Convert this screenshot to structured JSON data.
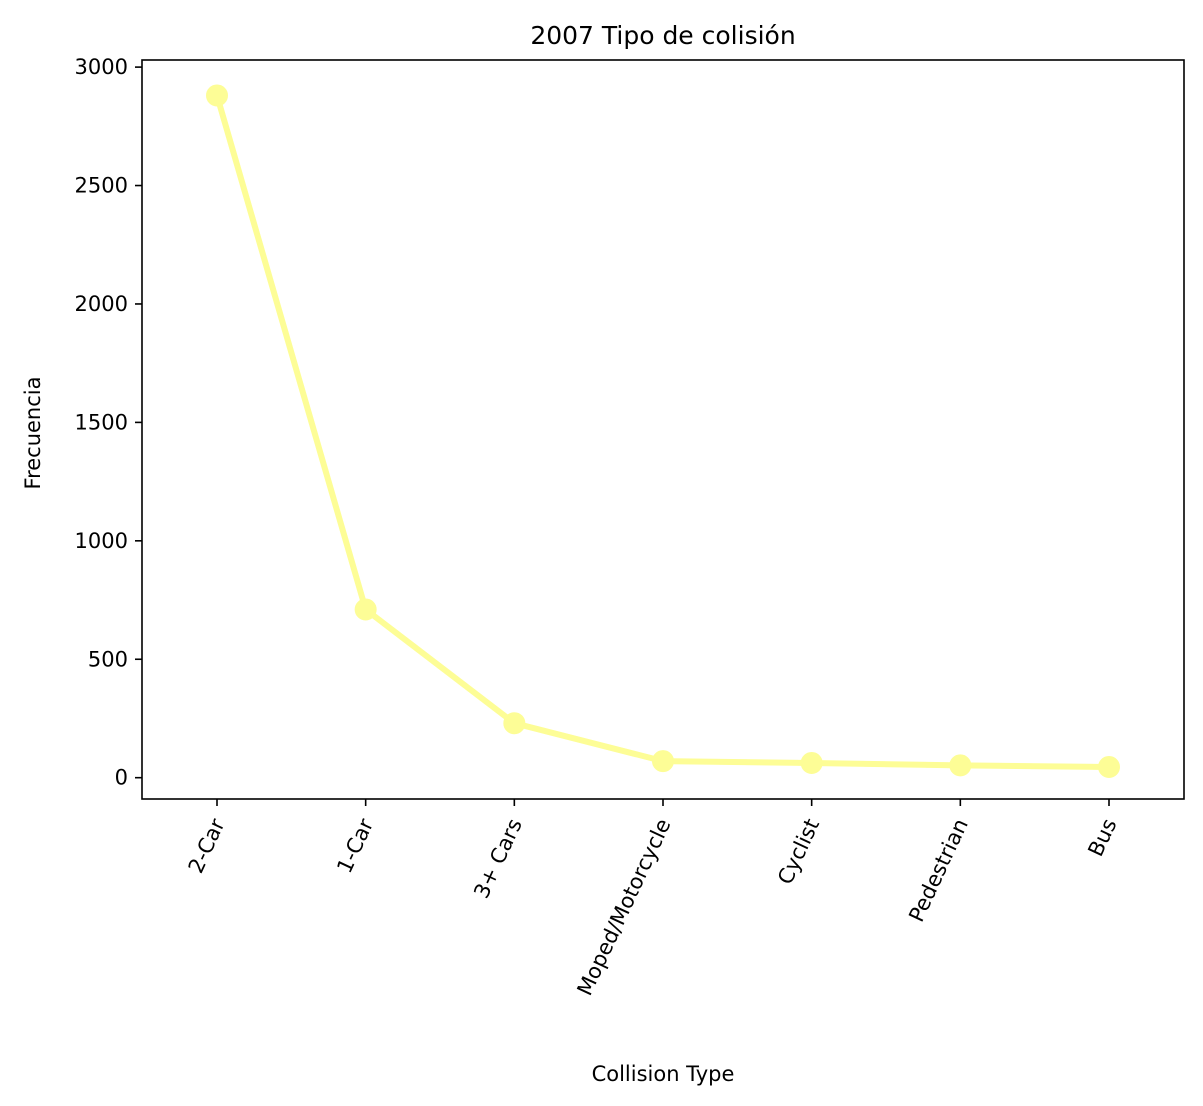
{
  "chart_data": {
    "type": "line",
    "title": "2007 Tipo de colisión",
    "xlabel": "Collision Type",
    "ylabel": "Frecuencia",
    "categories": [
      "2-Car",
      "1-Car",
      "3+ Cars",
      "Moped/Motorcycle",
      "Cyclist",
      "Pedestrian",
      "Bus"
    ],
    "values": [
      2880,
      710,
      230,
      70,
      62,
      52,
      45
    ],
    "ylim": [
      -90,
      3030
    ],
    "yticks": [
      0,
      500,
      1000,
      1500,
      2000,
      2500,
      3000
    ],
    "xtick_rotation": 65,
    "grid": false,
    "legend": "none",
    "line_color": "#fdfd96",
    "marker": "circle"
  }
}
